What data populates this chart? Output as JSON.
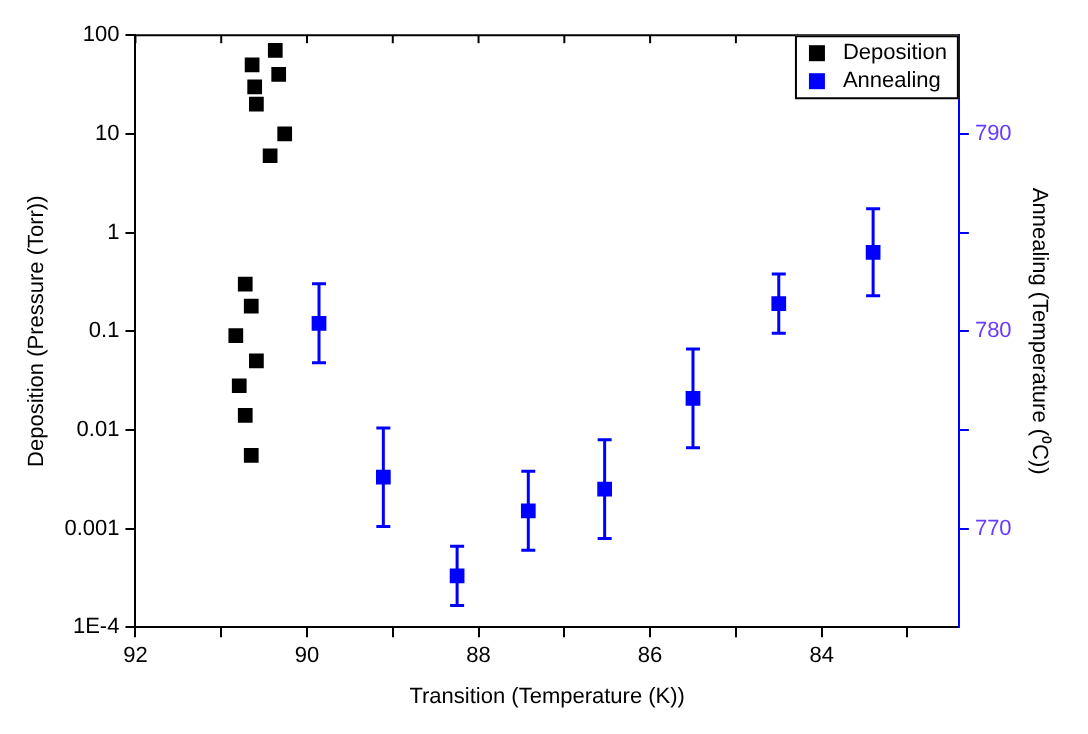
{
  "chart_data": {
    "type": "scatter",
    "xlabel": "Transition (Temperature (K))",
    "ylabel": "Deposition (Pressure (Torr))",
    "y2label": "Annealing (Temperature (⁰C))",
    "xlim": [
      92,
      82.4
    ],
    "xticks": [
      92,
      {
        "value": 91,
        "label": null
      },
      90,
      {
        "value": 89,
        "label": null
      },
      88,
      {
        "value": 87,
        "label": null
      },
      86,
      {
        "value": 85,
        "label": null
      },
      84,
      {
        "value": 83,
        "label": null
      }
    ],
    "ylim": [
      0.0001,
      100
    ],
    "yticks": [
      {
        "value": 0.0001,
        "label": "1E-4"
      },
      0.001,
      0.01,
      0.1,
      1,
      10,
      100
    ],
    "log": "y",
    "y2lim": [
      765,
      795
    ],
    "y2ticks": [
      770,
      {
        "value": 775,
        "label": null
      },
      780,
      {
        "value": 785,
        "label": null
      },
      790
    ],
    "marker": "square",
    "legend": "top right",
    "series": [
      {
        "name": "Deposition",
        "color": "#000000",
        "x": [
          90.37,
          90.64,
          90.33,
          90.61,
          90.59,
          90.26,
          90.43,
          90.72,
          90.65,
          90.83,
          90.59,
          90.79,
          90.72,
          90.65
        ],
        "values": [
          70,
          50,
          40,
          30,
          20,
          10,
          6,
          0.3,
          0.18,
          0.09,
          0.05,
          0.028,
          0.014,
          0.0055
        ]
      },
      {
        "name": "Annealing",
        "color": "#0000ff",
        "axis": "y2",
        "x": [
          89.86,
          89.11,
          88.25,
          87.42,
          86.53,
          85.5,
          84.5,
          83.4
        ],
        "values": [
          780.4,
          772.6,
          767.6,
          770.9,
          772,
          776.6,
          781.4,
          784
        ],
        "errors": [
          2,
          2.5,
          1.5,
          2,
          2.5,
          2.5,
          1.5,
          2.2
        ]
      }
    ]
  }
}
